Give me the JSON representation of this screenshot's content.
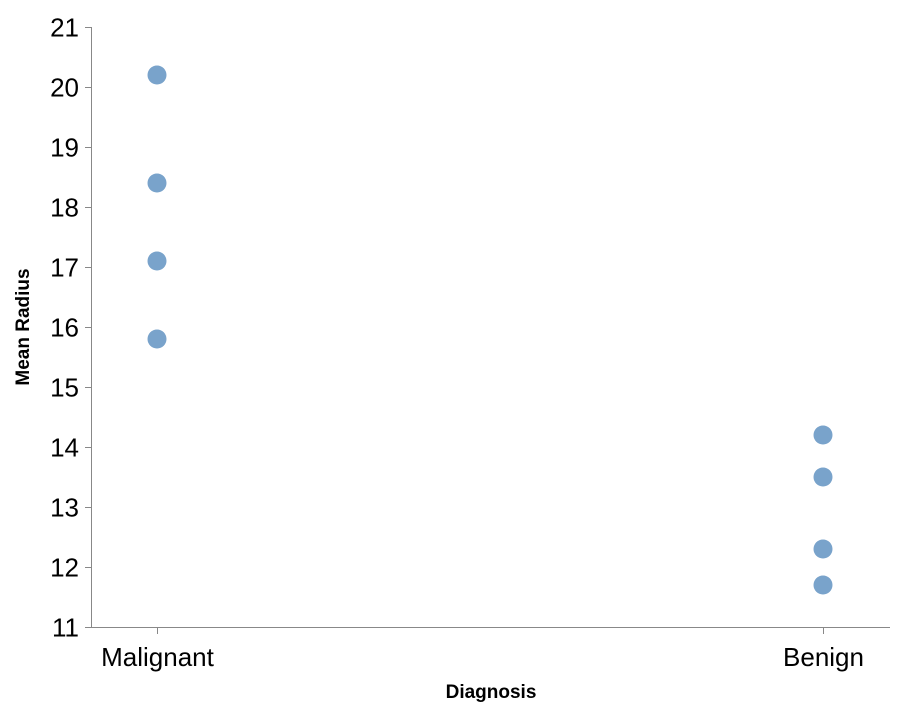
{
  "chart_data": {
    "type": "scatter",
    "title": "",
    "xlabel": "Diagnosis",
    "ylabel": "Mean Radius",
    "categories": [
      "Malignant",
      "Benign"
    ],
    "ylim": [
      11,
      21
    ],
    "yticks": [
      11,
      12,
      13,
      14,
      15,
      16,
      17,
      18,
      19,
      20,
      21
    ],
    "grid": false,
    "legend": "none",
    "point_color": "#79a3cb",
    "points": [
      {
        "x": "Malignant",
        "y": 20.2
      },
      {
        "x": "Malignant",
        "y": 18.4
      },
      {
        "x": "Malignant",
        "y": 17.1
      },
      {
        "x": "Malignant",
        "y": 15.8
      },
      {
        "x": "Benign",
        "y": 14.2
      },
      {
        "x": "Benign",
        "y": 13.5
      },
      {
        "x": "Benign",
        "y": 12.3
      },
      {
        "x": "Benign",
        "y": 11.7
      }
    ]
  }
}
